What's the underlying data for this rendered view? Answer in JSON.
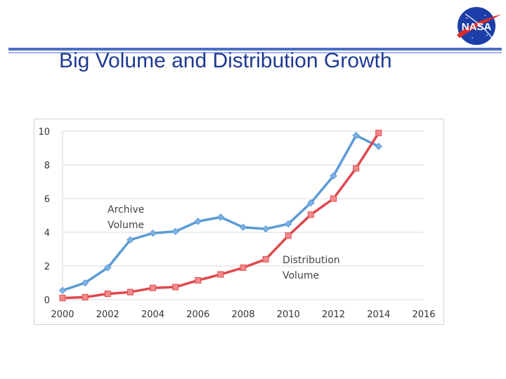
{
  "slide": {
    "title": "Big Volume and Distribution Growth",
    "logo_text": "NASA"
  },
  "colors": {
    "rule": "#4a6fc4",
    "title": "#1f3a93",
    "archive": "#5b9bd5",
    "archive_marker": "#7fb2e5",
    "distribution": "#e0474c",
    "distribution_marker": "#f28b8b",
    "grid": "#d9d9d9"
  },
  "icons": {
    "logo": "nasa-meatball-logo"
  },
  "chart_data": {
    "type": "line",
    "x_ticks": [
      2000,
      2002,
      2004,
      2006,
      2008,
      2010,
      2012,
      2014,
      2016
    ],
    "y_ticks": [
      0,
      2,
      4,
      6,
      8,
      10
    ],
    "xlim": [
      2000,
      2016
    ],
    "ylim": [
      0,
      10
    ],
    "grid": true,
    "legend": "none",
    "series": [
      {
        "annotation_line1": "Archive",
        "annotation_line2": "Volume",
        "marker": "diamond",
        "x": [
          2000,
          2001,
          2002,
          2003,
          2004,
          2005,
          2006,
          2007,
          2008,
          2009,
          2010,
          2011,
          2012,
          2013,
          2014
        ],
        "y": [
          0.55,
          1.0,
          1.9,
          3.55,
          3.95,
          4.05,
          4.65,
          4.9,
          4.3,
          4.2,
          4.5,
          5.75,
          7.35,
          9.75,
          9.1
        ]
      },
      {
        "annotation_line1": "Distribution",
        "annotation_line2": "Volume",
        "marker": "square",
        "x": [
          2000,
          2001,
          2002,
          2003,
          2004,
          2005,
          2006,
          2007,
          2008,
          2009,
          2010,
          2011,
          2012,
          2013,
          2014
        ],
        "y": [
          0.1,
          0.15,
          0.35,
          0.45,
          0.7,
          0.75,
          1.15,
          1.5,
          1.9,
          2.4,
          3.8,
          5.05,
          6.0,
          7.8,
          9.9
        ]
      }
    ]
  }
}
